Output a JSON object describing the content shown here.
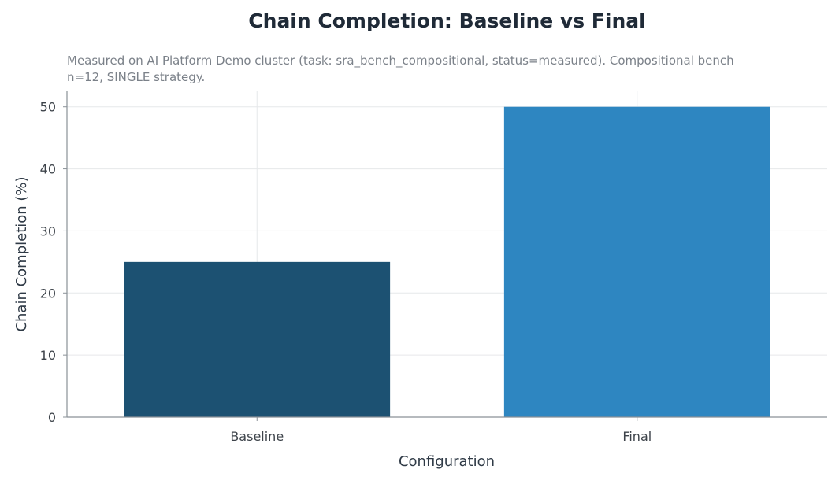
{
  "chart_data": {
    "type": "bar",
    "title": "Chain Completion: Baseline vs Final",
    "subtitle": "Measured on AI Platform Demo cluster (task: sra_bench_compositional, status=measured). Compositional bench n=12, SINGLE strategy.",
    "xlabel": "Configuration",
    "ylabel": "Chain Completion (%)",
    "categories": [
      "Baseline",
      "Final"
    ],
    "values": [
      25,
      50
    ],
    "colors": [
      "#1c5172",
      "#2e86c1"
    ],
    "ylim": [
      0,
      52.5
    ],
    "yticks": [
      0,
      10,
      20,
      30,
      40,
      50
    ],
    "grid": true
  }
}
